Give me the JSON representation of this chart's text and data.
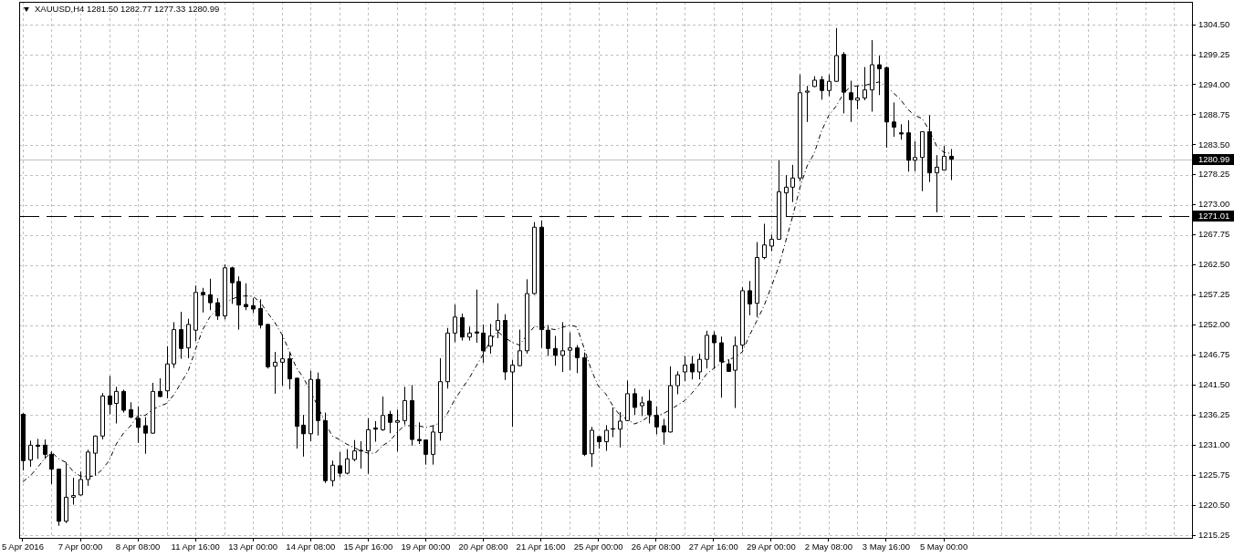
{
  "chart_data": {
    "type": "candlestick",
    "title": "XAUUSD,H4 1281.50 1282.77 1277.33 1280.99",
    "categories": [
      "5 Apr 2016",
      null,
      null,
      null,
      null,
      null,
      null,
      null,
      "7 Apr 00:00",
      null,
      null,
      null,
      null,
      null,
      null,
      null,
      "8 Apr 08:00",
      null,
      null,
      null,
      null,
      null,
      null,
      null,
      "11 Apr 16:00",
      null,
      null,
      null,
      null,
      null,
      null,
      null,
      "13 Apr 00:00",
      null,
      null,
      null,
      null,
      null,
      null,
      null,
      "14 Apr 08:00",
      null,
      null,
      null,
      null,
      null,
      null,
      null,
      "15 Apr 16:00",
      null,
      null,
      null,
      null,
      null,
      null,
      null,
      "19 Apr 00:00",
      null,
      null,
      null,
      null,
      null,
      null,
      null,
      "20 Apr 08:00",
      null,
      null,
      null,
      null,
      null,
      null,
      null,
      "21 Apr 16:00",
      null,
      null,
      null,
      null,
      null,
      null,
      null,
      "25 Apr 00:00",
      null,
      null,
      null,
      null,
      null,
      null,
      null,
      "26 Apr 08:00",
      null,
      null,
      null,
      null,
      null,
      null,
      null,
      "27 Apr 16:00",
      null,
      null,
      null,
      null,
      null,
      null,
      null,
      "29 Apr 00:00",
      null,
      null,
      null,
      null,
      null,
      null,
      null,
      "2 May 08:00",
      null,
      null,
      null,
      null,
      null,
      null,
      null,
      "3 May 16:00",
      null,
      null,
      null,
      null,
      null,
      null,
      null,
      "5 May 00:00",
      null,
      null,
      null,
      null,
      null,
      null,
      null,
      null,
      null,
      null,
      null,
      null,
      null,
      null,
      null,
      null,
      null,
      null,
      null,
      null,
      null,
      null,
      null,
      null,
      null,
      null,
      null,
      null,
      null,
      null,
      null,
      null,
      null,
      null
    ],
    "ohlc": [
      [
        1236.4,
        1236.6,
        1226.6,
        1228.3
      ],
      [
        1228.4,
        1231.8,
        1227.2,
        1231.0
      ],
      [
        1231.0,
        1232.1,
        1228.6,
        1230.8
      ],
      [
        1231.0,
        1232.0,
        1228.6,
        1229.4
      ],
      [
        1229.4,
        1229.9,
        1224.2,
        1226.8
      ],
      [
        1226.8,
        1226.9,
        1216.9,
        1217.7
      ],
      [
        1217.7,
        1228.0,
        1217.4,
        1221.9
      ],
      [
        1221.9,
        1225.3,
        1220.6,
        1222.2
      ],
      [
        1222.3,
        1226.4,
        1222.2,
        1225.0
      ],
      [
        1225.0,
        1230.2,
        1223.9,
        1229.8
      ],
      [
        1229.6,
        1232.7,
        1225.7,
        1232.6
      ],
      [
        1232.6,
        1240.1,
        1232.0,
        1239.6
      ],
      [
        1239.6,
        1243.1,
        1236.4,
        1238.1
      ],
      [
        1238.3,
        1241.2,
        1234.8,
        1240.4
      ],
      [
        1240.4,
        1240.7,
        1236.7,
        1237.1
      ],
      [
        1237.2,
        1238.5,
        1235.7,
        1235.9
      ],
      [
        1235.7,
        1237.8,
        1231.4,
        1234.1
      ],
      [
        1234.4,
        1235.9,
        1229.5,
        1233.1
      ],
      [
        1233.1,
        1241.9,
        1233.0,
        1240.4
      ],
      [
        1240.4,
        1242.7,
        1239.4,
        1239.5
      ],
      [
        1240.5,
        1248.3,
        1239.2,
        1245.2
      ],
      [
        1245.2,
        1252.5,
        1244.5,
        1251.2
      ],
      [
        1251.2,
        1254.3,
        1246.1,
        1247.9
      ],
      [
        1248.0,
        1253.1,
        1246.2,
        1252.1
      ],
      [
        1251.1,
        1258.9,
        1249.2,
        1257.7
      ],
      [
        1257.7,
        1258.5,
        1254.2,
        1257.3
      ],
      [
        1257.3,
        1260.1,
        1254.6,
        1255.9
      ],
      [
        1255.9,
        1256.7,
        1252.9,
        1253.6
      ],
      [
        1253.6,
        1262.6,
        1253.0,
        1262.0
      ],
      [
        1262.0,
        1262.2,
        1255.7,
        1259.4
      ],
      [
        1259.6,
        1260.5,
        1251.2,
        1255.5
      ],
      [
        1255.6,
        1259.3,
        1254.6,
        1255.2
      ],
      [
        1255.4,
        1256.7,
        1254.1,
        1254.8
      ],
      [
        1254.9,
        1256.5,
        1251.4,
        1252.0
      ],
      [
        1252.1,
        1252.2,
        1244.4,
        1244.7
      ],
      [
        1244.8,
        1247.3,
        1240.0,
        1245.5
      ],
      [
        1245.5,
        1250.4,
        1241.4,
        1246.1
      ],
      [
        1246.1,
        1247.3,
        1240.8,
        1242.6
      ],
      [
        1242.7,
        1242.8,
        1230.4,
        1234.3
      ],
      [
        1234.5,
        1236.3,
        1229.0,
        1233.0
      ],
      [
        1233.0,
        1244.0,
        1231.7,
        1242.5
      ],
      [
        1242.5,
        1243.7,
        1232.7,
        1235.3
      ],
      [
        1235.3,
        1236.7,
        1224.4,
        1224.8
      ],
      [
        1224.8,
        1228.3,
        1223.8,
        1227.5
      ],
      [
        1227.4,
        1229.8,
        1225.4,
        1226.1
      ],
      [
        1226.1,
        1230.3,
        1225.9,
        1228.6
      ],
      [
        1228.5,
        1231.9,
        1228.2,
        1230.0
      ],
      [
        1230.0,
        1231.7,
        1226.9,
        1230.1
      ],
      [
        1230.0,
        1235.7,
        1226.0,
        1233.7
      ],
      [
        1234.0,
        1235.2,
        1231.6,
        1233.8
      ],
      [
        1233.7,
        1239.5,
        1233.5,
        1236.2
      ],
      [
        1236.4,
        1237.0,
        1233.1,
        1235.0
      ],
      [
        1235.0,
        1237.2,
        1229.9,
        1235.3
      ],
      [
        1235.3,
        1241.2,
        1234.6,
        1238.8
      ],
      [
        1238.8,
        1241.5,
        1230.9,
        1232.0
      ],
      [
        1232.0,
        1235.0,
        1231.2,
        1231.8
      ],
      [
        1231.9,
        1232.0,
        1227.6,
        1229.4
      ],
      [
        1229.4,
        1234.4,
        1227.6,
        1233.3
      ],
      [
        1233.2,
        1246.2,
        1231.8,
        1242.1
      ],
      [
        1242.1,
        1251.5,
        1240.9,
        1250.6
      ],
      [
        1250.6,
        1255.6,
        1249.0,
        1253.4
      ],
      [
        1253.3,
        1254.0,
        1249.3,
        1249.9
      ],
      [
        1249.9,
        1251.7,
        1249.3,
        1250.6
      ],
      [
        1250.8,
        1258.2,
        1248.9,
        1250.6
      ],
      [
        1250.6,
        1252.1,
        1245.4,
        1247.5
      ],
      [
        1248.3,
        1252.2,
        1247.0,
        1250.1
      ],
      [
        1251.1,
        1255.8,
        1249.7,
        1252.8
      ],
      [
        1252.8,
        1253.9,
        1242.4,
        1243.8
      ],
      [
        1243.8,
        1245.9,
        1234.2,
        1245.0
      ],
      [
        1244.9,
        1251.2,
        1244.8,
        1247.5
      ],
      [
        1247.5,
        1260.0,
        1247.0,
        1257.5
      ],
      [
        1257.5,
        1270.0,
        1257.3,
        1269.1
      ],
      [
        1269.1,
        1270.3,
        1248.0,
        1251.2
      ],
      [
        1251.1,
        1252.0,
        1246.6,
        1247.9
      ],
      [
        1247.9,
        1250.1,
        1244.9,
        1246.7
      ],
      [
        1246.7,
        1252.5,
        1243.8,
        1247.5
      ],
      [
        1247.6,
        1250.7,
        1244.1,
        1248.0
      ],
      [
        1248.0,
        1248.5,
        1243.6,
        1246.3
      ],
      [
        1246.3,
        1247.2,
        1229.1,
        1229.4
      ],
      [
        1229.5,
        1234.2,
        1227.2,
        1233.6
      ],
      [
        1232.5,
        1232.6,
        1230.4,
        1231.6
      ],
      [
        1231.6,
        1234.5,
        1230.0,
        1233.6
      ],
      [
        1233.8,
        1237.6,
        1232.4,
        1233.9
      ],
      [
        1233.8,
        1236.8,
        1230.6,
        1235.2
      ],
      [
        1235.3,
        1242.3,
        1235.2,
        1240.0
      ],
      [
        1240.0,
        1240.9,
        1236.3,
        1237.6
      ],
      [
        1237.9,
        1239.5,
        1236.1,
        1238.4
      ],
      [
        1238.7,
        1240.7,
        1234.8,
        1236.3
      ],
      [
        1236.2,
        1237.8,
        1232.9,
        1234.2
      ],
      [
        1234.4,
        1235.6,
        1231.1,
        1233.3
      ],
      [
        1233.3,
        1244.8,
        1233.2,
        1241.4
      ],
      [
        1241.4,
        1243.9,
        1239.9,
        1243.3
      ],
      [
        1243.8,
        1246.6,
        1242.2,
        1245.0
      ],
      [
        1245.2,
        1246.6,
        1242.5,
        1243.8
      ],
      [
        1243.8,
        1247.0,
        1242.5,
        1246.0
      ],
      [
        1246.0,
        1251.0,
        1244.4,
        1250.2
      ],
      [
        1250.2,
        1250.9,
        1244.4,
        1248.9
      ],
      [
        1248.9,
        1250.0,
        1239.3,
        1245.6
      ],
      [
        1245.2,
        1246.0,
        1243.9,
        1243.9
      ],
      [
        1244.1,
        1250.0,
        1237.5,
        1248.4
      ],
      [
        1248.5,
        1258.6,
        1247.7,
        1258.0
      ],
      [
        1258.0,
        1259.7,
        1253.7,
        1255.7
      ],
      [
        1255.8,
        1266.5,
        1253.4,
        1263.8
      ],
      [
        1263.8,
        1269.7,
        1263.5,
        1266.0
      ],
      [
        1265.8,
        1267.8,
        1264.9,
        1267.0
      ],
      [
        1267.0,
        1280.8,
        1266.9,
        1275.3
      ],
      [
        1275.1,
        1278.2,
        1271.0,
        1276.1
      ],
      [
        1276.1,
        1280.0,
        1273.5,
        1277.7
      ],
      [
        1277.7,
        1295.8,
        1277.1,
        1292.6
      ],
      [
        1292.7,
        1293.8,
        1287.5,
        1292.9
      ],
      [
        1293.7,
        1295.5,
        1293.6,
        1294.8
      ],
      [
        1294.9,
        1295.5,
        1291.4,
        1293.0
      ],
      [
        1293.0,
        1295.8,
        1292.0,
        1294.6
      ],
      [
        1294.6,
        1303.9,
        1294.5,
        1299.1
      ],
      [
        1299.3,
        1299.7,
        1289.0,
        1292.7
      ],
      [
        1292.6,
        1294.7,
        1287.5,
        1291.4
      ],
      [
        1291.3,
        1293.8,
        1289.7,
        1291.7
      ],
      [
        1291.7,
        1297.1,
        1291.3,
        1293.1
      ],
      [
        1293.1,
        1301.8,
        1289.3,
        1297.5
      ],
      [
        1297.5,
        1299.1,
        1292.2,
        1296.8
      ],
      [
        1297.0,
        1297.2,
        1283.0,
        1287.5
      ],
      [
        1287.5,
        1290.9,
        1284.9,
        1286.6
      ],
      [
        1285.6,
        1287.1,
        1284.4,
        1285.4
      ],
      [
        1285.6,
        1287.8,
        1278.8,
        1280.8
      ],
      [
        1280.8,
        1284.1,
        1278.9,
        1281.3
      ],
      [
        1281.3,
        1285.8,
        1275.4,
        1285.8
      ],
      [
        1285.8,
        1288.7,
        1277.0,
        1278.6
      ],
      [
        1278.6,
        1281.7,
        1271.7,
        1279.6
      ],
      [
        1279.1,
        1283.3,
        1279.0,
        1281.5
      ],
      [
        1281.5,
        1282.77,
        1277.33,
        1280.99
      ],
      null,
      null,
      null,
      null,
      null,
      null,
      null,
      null,
      null,
      null,
      null,
      null,
      null,
      null,
      null,
      null,
      null,
      null,
      null,
      null,
      null,
      null,
      null,
      null,
      null,
      null,
      null,
      null,
      null,
      null,
      null,
      null,
      null
    ],
    "colors": [
      "#000000",
      "#ffffff",
      "#000000",
      "#000000",
      "#000000",
      "#000000",
      "#ffffff",
      "#ffffff",
      "#ffffff",
      "#ffffff",
      "#ffffff",
      "#ffffff",
      "#000000",
      "#ffffff",
      "#000000",
      "#000000",
      "#000000",
      "#000000",
      "#ffffff",
      "#000000",
      "#ffffff",
      "#ffffff",
      "#000000",
      "#ffffff",
      "#ffffff",
      "#000000",
      "#000000",
      "#000000",
      "#ffffff",
      "#000000",
      "#000000",
      "#000000",
      "#000000",
      "#000000",
      "#000000",
      "#ffffff",
      "#ffffff",
      "#000000",
      "#000000",
      "#000000",
      "#ffffff",
      "#000000",
      "#000000",
      "#ffffff",
      "#000000",
      "#ffffff",
      "#ffffff",
      "#ffffff",
      "#ffffff",
      "#000000",
      "#ffffff",
      "#000000",
      "#ffffff",
      "#ffffff",
      "#000000",
      "#000000",
      "#000000",
      "#ffffff",
      "#ffffff",
      "#ffffff",
      "#ffffff",
      "#000000",
      "#ffffff",
      "#000000",
      "#000000",
      "#ffffff",
      "#ffffff",
      "#000000",
      "#ffffff",
      "#ffffff",
      "#ffffff",
      "#ffffff",
      "#000000",
      "#000000",
      "#000000",
      "#ffffff",
      "#ffffff",
      "#000000",
      "#000000",
      "#ffffff",
      "#000000",
      "#ffffff",
      "#ffffff",
      "#ffffff",
      "#ffffff",
      "#000000",
      "#ffffff",
      "#000000",
      "#000000",
      "#000000",
      "#ffffff",
      "#ffffff",
      "#ffffff",
      "#000000",
      "#ffffff",
      "#ffffff",
      "#000000",
      "#000000",
      "#000000",
      "#ffffff",
      "#ffffff",
      "#000000",
      "#ffffff",
      "#ffffff",
      "#ffffff",
      "#ffffff",
      "#ffffff",
      "#ffffff",
      "#ffffff",
      "#ffffff",
      "#ffffff",
      "#000000",
      "#ffffff",
      "#ffffff",
      "#000000",
      "#000000",
      "#ffffff",
      "#ffffff",
      "#ffffff",
      "#000000",
      "#000000",
      "#000000",
      "#000000",
      "#000000",
      "#ffffff",
      "#ffffff",
      "#000000",
      "#ffffff",
      "#ffffff",
      "#000000",
      null,
      null,
      null,
      null,
      null,
      null,
      null,
      null,
      null,
      null,
      null,
      null,
      null,
      null,
      null,
      null,
      null,
      null,
      null,
      null,
      null,
      null,
      null,
      null,
      null,
      null,
      null,
      null,
      null,
      null,
      null,
      null,
      null
    ],
    "series": [
      {
        "type": "line",
        "color": "#000000",
        "line_style": "dashed",
        "values": [
          1224.6,
          1225.6,
          1227.0,
          1228.6,
          1229.8,
          1228.6,
          1228.0,
          1226.4,
          1225.6,
          1225.5,
          1225.6,
          1226.7,
          1228.3,
          1231.2,
          1233.1,
          1234.4,
          1236.2,
          1236.2,
          1237.2,
          1237.8,
          1238.3,
          1239.8,
          1241.9,
          1244.0,
          1247.7,
          1251.2,
          1253.4,
          1254.8,
          1255.8,
          1256.5,
          1257.0,
          1257.1,
          1257.0,
          1256.0,
          1254.2,
          1252.5,
          1250.4,
          1247.6,
          1244.6,
          1242.8,
          1240.4,
          1237.8,
          1235.0,
          1232.6,
          1232.0,
          1231.2,
          1230.6,
          1230.0,
          1229.6,
          1229.6,
          1230.9,
          1231.7,
          1233.2,
          1234.4,
          1234.4,
          1234.4,
          1234.1,
          1234.4,
          1234.9,
          1236.5,
          1238.9,
          1240.8,
          1242.6,
          1244.8,
          1246.9,
          1249.3,
          1250.9,
          1249.8,
          1249.0,
          1248.5,
          1250.1,
          1251.6,
          1251.8,
          1251.4,
          1251.2,
          1251.6,
          1252.0,
          1251.7,
          1248.0,
          1244.2,
          1241.3,
          1240.0,
          1237.9,
          1236.2,
          1235.5,
          1234.7,
          1235.2,
          1236.0,
          1236.2,
          1236.5,
          1237.2,
          1238.0,
          1238.8,
          1240.1,
          1241.6,
          1243.4,
          1244.4,
          1245.3,
          1245.9,
          1246.4,
          1247.3,
          1250.2,
          1252.7,
          1255.3,
          1258.6,
          1262.0,
          1266.5,
          1271.0,
          1276.0,
          1279.8,
          1282.0,
          1285.9,
          1288.6,
          1290.2,
          1292.3,
          1293.7,
          1293.8,
          1293.9,
          1294.2,
          1294.5,
          1293.7,
          1292.6,
          1291.4,
          1289.7,
          1288.6,
          1288.1,
          1286.0,
          1283.3,
          1282.2,
          1282.0,
          null,
          null,
          null,
          null,
          null,
          null,
          null,
          null,
          null,
          null,
          null,
          null,
          null,
          null,
          null,
          null,
          null,
          null,
          null,
          null,
          null,
          null,
          null,
          null,
          null,
          null,
          null,
          null,
          null,
          null,
          null,
          null,
          null
        ]
      }
    ],
    "ref_lines": [
      {
        "axis": "y",
        "value": 1271.01,
        "label": "1271.01",
        "color": "#000000",
        "line_style": "dashed"
      },
      {
        "axis": "y",
        "value": 1280.99,
        "label": "1280.99",
        "color": "#c0c0c0",
        "line_style": "solid"
      }
    ],
    "ylim": [
      1214.8,
      1308.5
    ],
    "yticks": [
      1215.25,
      {
        "value": 1220.5,
        "label": "1220.50"
      },
      1225.75,
      {
        "value": 1231,
        "label": "1231.00"
      },
      1236.25,
      {
        "value": 1241.5,
        "label": "1241.50"
      },
      1246.75,
      {
        "value": 1252,
        "label": "1252.00"
      },
      1257.25,
      {
        "value": 1262.5,
        "label": "1262.50"
      },
      1267.75,
      {
        "value": 1273,
        "label": "1273.00"
      },
      1278.25,
      {
        "value": 1283.5,
        "label": "1283.50"
      },
      1288.75,
      {
        "value": 1294,
        "label": "1294.00"
      },
      1299.25,
      {
        "value": 1304.5,
        "label": "1304.50"
      }
    ],
    "grid": true
  }
}
